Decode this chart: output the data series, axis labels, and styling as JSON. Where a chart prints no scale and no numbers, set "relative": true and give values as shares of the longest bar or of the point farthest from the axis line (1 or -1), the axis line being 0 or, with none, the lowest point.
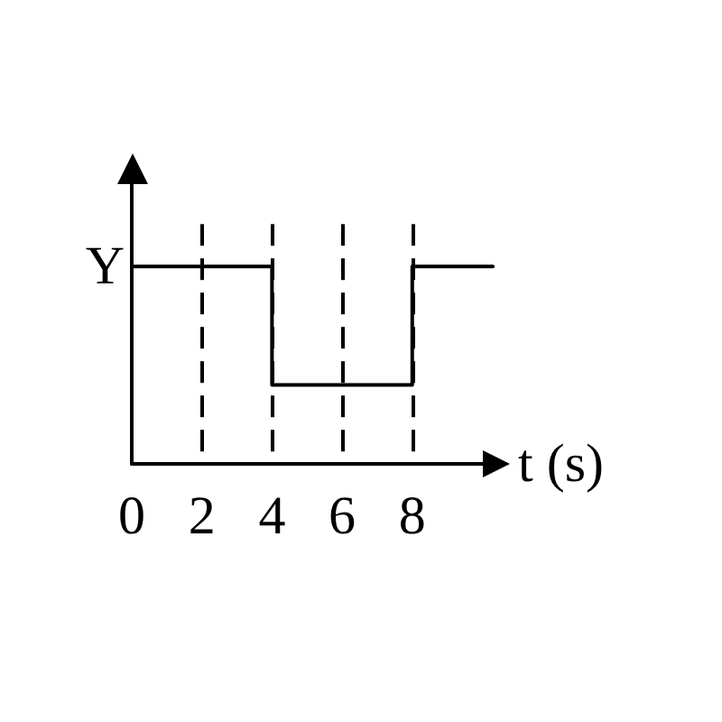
{
  "chart_data": {
    "type": "step",
    "x": [
      0,
      4,
      8,
      10.3
    ],
    "values": [
      1,
      0.4,
      1,
      1
    ],
    "color": "#000000",
    "relative": true,
    "xlim": [
      0,
      10.4
    ],
    "xticks": [
      0,
      2,
      4,
      6,
      8
    ],
    "xlabel": "t (s)",
    "annotations": [
      {
        "text": "Y",
        "x": 0,
        "y": 1
      }
    ],
    "ref_lines": [
      {
        "axis": "x",
        "value": 2,
        "color": "#000000",
        "line_style": "dashed"
      },
      {
        "axis": "x",
        "value": 4,
        "color": "#000000",
        "line_style": "dashed"
      },
      {
        "axis": "x",
        "value": 6,
        "color": "#000000",
        "line_style": "dashed"
      },
      {
        "axis": "x",
        "value": 8,
        "color": "#000000",
        "line_style": "dashed"
      }
    ],
    "marker": "none",
    "grid": false
  }
}
